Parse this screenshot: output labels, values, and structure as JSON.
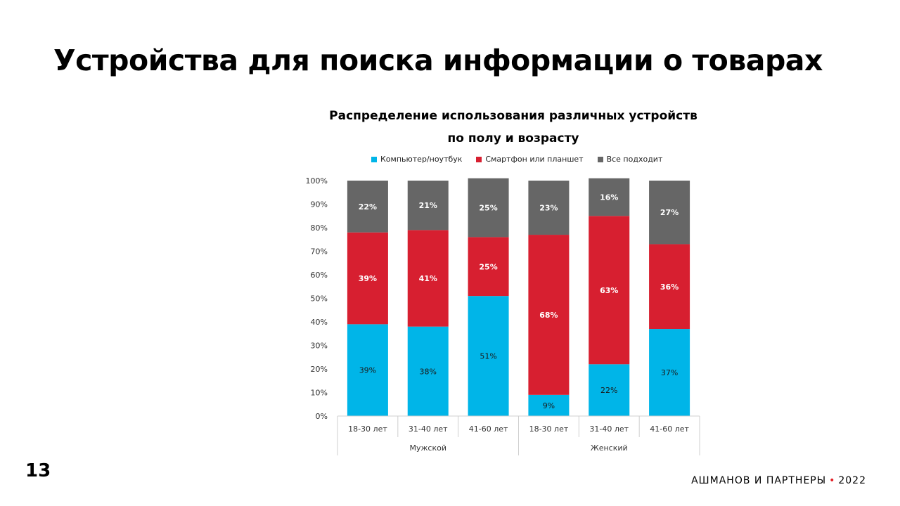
{
  "slide": {
    "title": "Устройства для поиска информации о товарах",
    "page_number": "13",
    "footer_brand": "АШМАНОВ И ПАРТНЕРЫ",
    "footer_dot": "•",
    "footer_year": "2022"
  },
  "colors": {
    "computer": "#00b5e8",
    "smartphone": "#d71f30",
    "both": "#666666"
  },
  "chart_data": {
    "type": "bar",
    "stacked": true,
    "title_line1": "Распределение использования различных устройств",
    "title_line2": "по полу и возрасту",
    "ylim": [
      0,
      100
    ],
    "yticks": [
      "0%",
      "10%",
      "20%",
      "30%",
      "40%",
      "50%",
      "60%",
      "70%",
      "80%",
      "90%",
      "100%"
    ],
    "categories": [
      "18-30 лет",
      "31-40 лет",
      "41-60 лет",
      "18-30 лет",
      "31-40 лет",
      "41-60 лет"
    ],
    "groups": [
      {
        "label": "Мужской",
        "count": 3
      },
      {
        "label": "Женский",
        "count": 3
      }
    ],
    "series": [
      {
        "name": "Компьютер/ноутбук",
        "key": "computer",
        "values": [
          39,
          38,
          51,
          9,
          22,
          37
        ],
        "labels": [
          "39%",
          "38%",
          "51%",
          "9%",
          "22%",
          "37%"
        ]
      },
      {
        "name": "Смартфон или планшет",
        "key": "smartphone",
        "values": [
          39,
          41,
          25,
          68,
          63,
          36
        ],
        "labels": [
          "39%",
          "41%",
          "25%",
          "68%",
          "63%",
          "36%"
        ]
      },
      {
        "name": "Все подходит",
        "key": "both",
        "values": [
          22,
          21,
          25,
          23,
          16,
          27
        ],
        "labels": [
          "22%",
          "21%",
          "25%",
          "23%",
          "16%",
          "27%"
        ]
      }
    ]
  }
}
